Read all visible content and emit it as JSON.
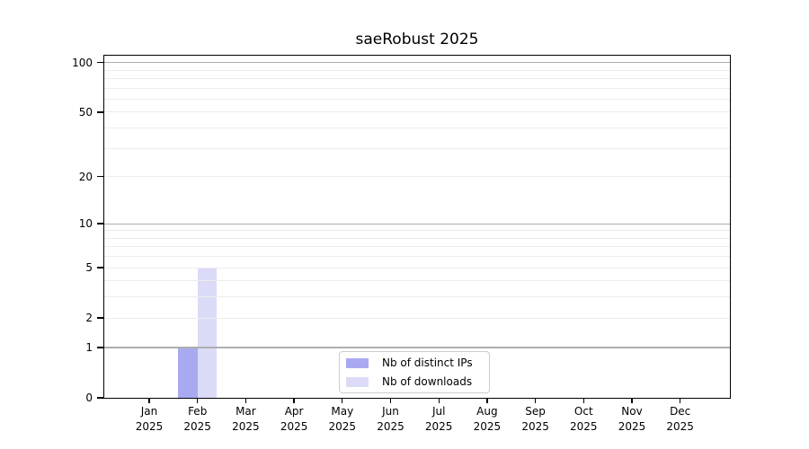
{
  "chart_data": {
    "type": "bar",
    "title": "saeRobust 2025",
    "categories": [
      "Jan 2025",
      "Feb 2025",
      "Mar 2025",
      "Apr 2025",
      "May 2025",
      "Jun 2025",
      "Jul 2025",
      "Aug 2025",
      "Sep 2025",
      "Oct 2025",
      "Nov 2025",
      "Dec 2025"
    ],
    "series": [
      {
        "name": "Nb of distinct IPs",
        "color": "#a9a9f2",
        "values": [
          0,
          1,
          0,
          0,
          0,
          0,
          0,
          0,
          0,
          0,
          0,
          0
        ]
      },
      {
        "name": "Nb of downloads",
        "color": "#dbdbf8",
        "values": [
          0,
          5,
          0,
          0,
          0,
          0,
          0,
          0,
          0,
          0,
          0,
          0
        ]
      }
    ],
    "xlabel": "",
    "ylabel": "",
    "yscale": "log10(1+y)",
    "ylim": [
      0,
      110
    ],
    "yticks": [
      0,
      1,
      2,
      5,
      10,
      20,
      50,
      100
    ],
    "grid": {
      "minor": [
        2,
        3,
        4,
        5,
        6,
        7,
        8,
        9,
        20,
        30,
        40,
        50,
        60,
        70,
        80,
        90
      ],
      "major": [
        1,
        10,
        100
      ],
      "minor_color": "#ececec",
      "major_color": "#aeaeae"
    },
    "legend": {
      "position": "inside-bottom-center",
      "border_color": "#cccccc",
      "background": "#ffffff"
    },
    "axis_color": "#000000",
    "text_color": "#000000",
    "background": "#ffffff"
  }
}
